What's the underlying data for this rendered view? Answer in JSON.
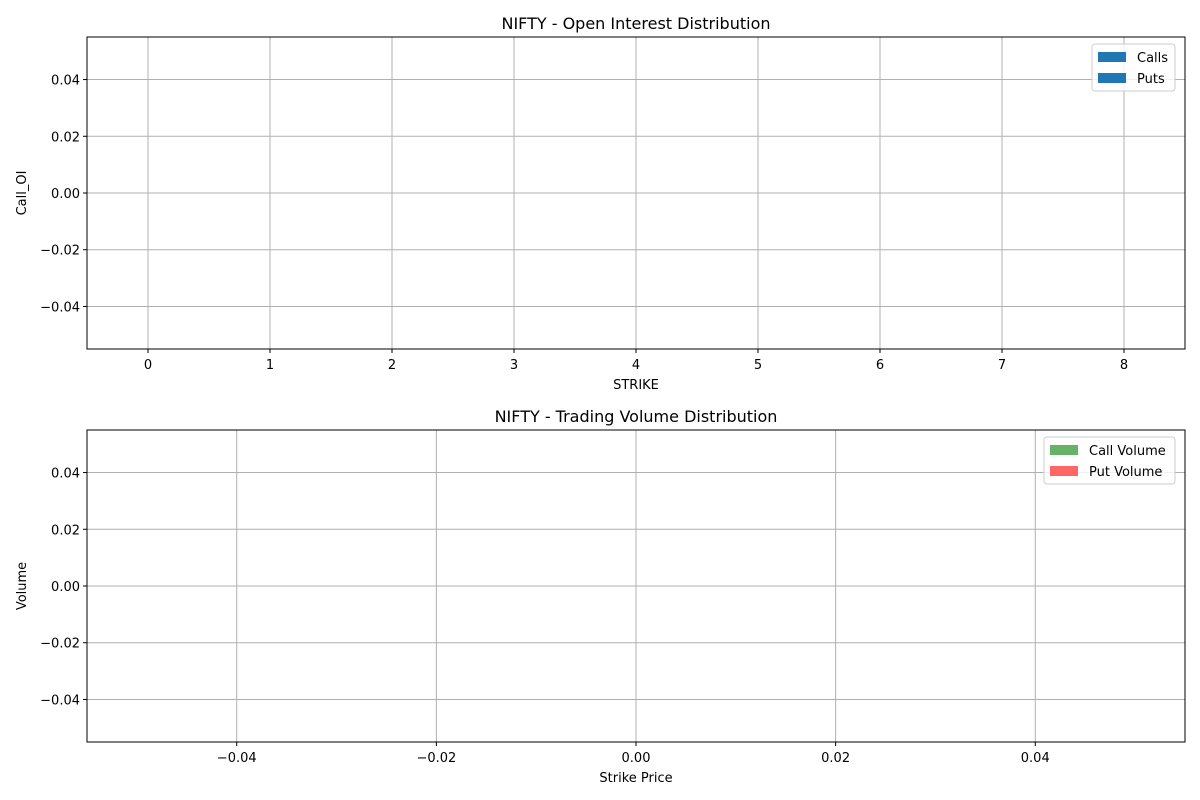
{
  "chart_data": [
    {
      "type": "bar",
      "title": "NIFTY - Open Interest Distribution",
      "xlabel": "STRIKE",
      "ylabel": "Call_OI",
      "xlim": [
        -0.5,
        8.5
      ],
      "ylim": [
        -0.055,
        0.055
      ],
      "x_ticks": [
        0,
        1,
        2,
        3,
        4,
        5,
        6,
        7,
        8
      ],
      "x_tick_labels": [
        "0",
        "1",
        "2",
        "3",
        "4",
        "5",
        "6",
        "7",
        "8"
      ],
      "y_ticks": [
        -0.04,
        -0.02,
        0.0,
        0.02,
        0.04
      ],
      "y_tick_labels": [
        "−0.04",
        "−0.02",
        "0.00",
        "0.02",
        "0.04"
      ],
      "grid": true,
      "legend_position": "top-right",
      "categories": [],
      "series": [
        {
          "name": "Calls",
          "color": "#1f77b4",
          "values": []
        },
        {
          "name": "Puts",
          "color": "#1f77b4",
          "values": []
        }
      ]
    },
    {
      "type": "bar",
      "title": "NIFTY - Trading Volume Distribution",
      "xlabel": "Strike Price",
      "ylabel": "Volume",
      "xlim": [
        -0.055,
        0.055
      ],
      "ylim": [
        -0.055,
        0.055
      ],
      "x_ticks": [
        -0.04,
        -0.02,
        0.0,
        0.02,
        0.04
      ],
      "x_tick_labels": [
        "−0.04",
        "−0.02",
        "0.00",
        "0.02",
        "0.04"
      ],
      "y_ticks": [
        -0.04,
        -0.02,
        0.0,
        0.02,
        0.04
      ],
      "y_tick_labels": [
        "−0.04",
        "−0.02",
        "0.00",
        "0.02",
        "0.04"
      ],
      "grid": true,
      "legend_position": "top-right",
      "categories": [],
      "series": [
        {
          "name": "Call Volume",
          "color": "#66b266",
          "values": []
        },
        {
          "name": "Put Volume",
          "color": "#ff6666",
          "values": []
        }
      ]
    }
  ]
}
